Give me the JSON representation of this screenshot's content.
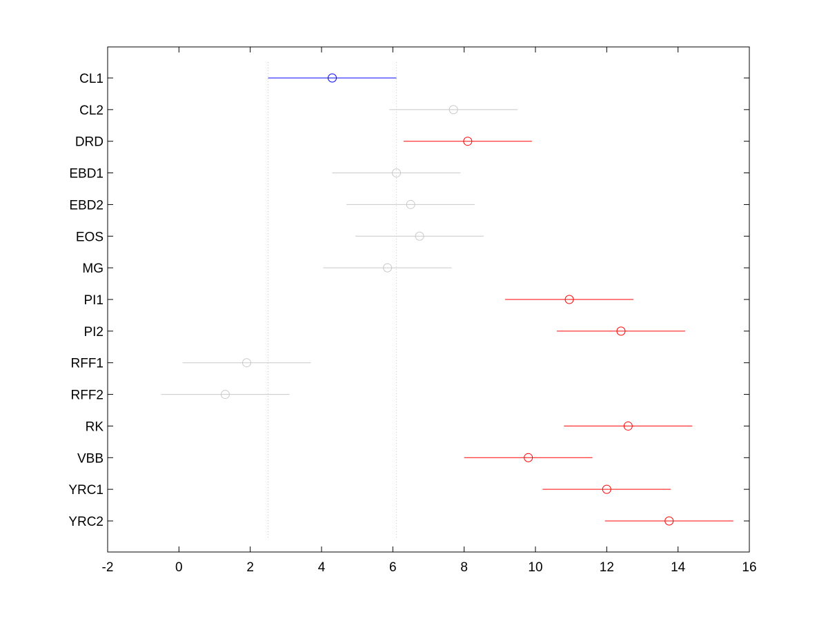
{
  "chart_data": {
    "type": "scatter",
    "title": "",
    "xlabel": "",
    "ylabel": "",
    "xlim": [
      -2,
      16
    ],
    "xticks": [
      -2,
      0,
      2,
      4,
      6,
      8,
      10,
      12,
      14,
      16
    ],
    "grid": false,
    "legend": "none",
    "reference_lines": [
      2.5,
      6.1
    ],
    "colors": {
      "selected": "#0000ff",
      "significant": "#ff0000",
      "not_significant": "#c8c8c8",
      "reference": "#c8c8c8",
      "axes": "#000000"
    },
    "groups": [
      {
        "label": "CL1",
        "mean": 4.3,
        "lower": 2.5,
        "upper": 6.1,
        "status": "selected"
      },
      {
        "label": "CL2",
        "mean": 7.7,
        "lower": 5.9,
        "upper": 9.5,
        "status": "not_significant"
      },
      {
        "label": "DRD",
        "mean": 8.1,
        "lower": 6.3,
        "upper": 9.9,
        "status": "significant"
      },
      {
        "label": "EBD1",
        "mean": 6.1,
        "lower": 4.3,
        "upper": 7.9,
        "status": "not_significant"
      },
      {
        "label": "EBD2",
        "mean": 6.5,
        "lower": 4.7,
        "upper": 8.3,
        "status": "not_significant"
      },
      {
        "label": "EOS",
        "mean": 6.75,
        "lower": 4.95,
        "upper": 8.55,
        "status": "not_significant"
      },
      {
        "label": "MG",
        "mean": 5.85,
        "lower": 4.05,
        "upper": 7.65,
        "status": "not_significant"
      },
      {
        "label": "PI1",
        "mean": 10.95,
        "lower": 9.15,
        "upper": 12.75,
        "status": "significant"
      },
      {
        "label": "PI2",
        "mean": 12.4,
        "lower": 10.6,
        "upper": 14.2,
        "status": "significant"
      },
      {
        "label": "RFF1",
        "mean": 1.9,
        "lower": 0.1,
        "upper": 3.7,
        "status": "not_significant"
      },
      {
        "label": "RFF2",
        "mean": 1.3,
        "lower": -0.5,
        "upper": 3.1,
        "status": "not_significant"
      },
      {
        "label": "RK",
        "mean": 12.6,
        "lower": 10.8,
        "upper": 14.4,
        "status": "significant"
      },
      {
        "label": "VBB",
        "mean": 9.8,
        "lower": 8.0,
        "upper": 11.6,
        "status": "significant"
      },
      {
        "label": "YRC1",
        "mean": 12.0,
        "lower": 10.2,
        "upper": 13.8,
        "status": "significant"
      },
      {
        "label": "YRC2",
        "mean": 13.75,
        "lower": 11.95,
        "upper": 15.55,
        "status": "significant"
      }
    ]
  }
}
